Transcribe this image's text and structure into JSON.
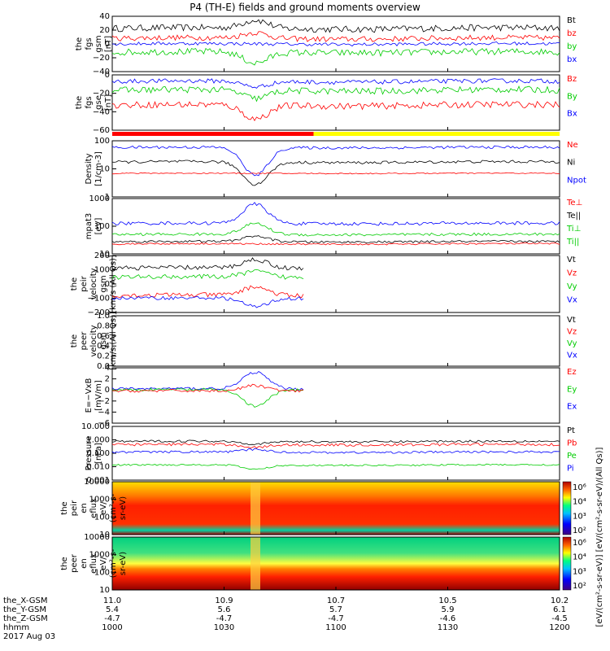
{
  "title": "P4 (TH-E) fields and ground moments overview",
  "chart_data": {
    "type": "line",
    "x_ticks": [
      "1000",
      "1030",
      "1100",
      "1130",
      "1200"
    ],
    "orbit_rows": [
      {
        "label": "the_X-GSM",
        "values": [
          "11.0",
          "10.9",
          "10.7",
          "10.5",
          "10.2"
        ]
      },
      {
        "label": "the_Y-GSM",
        "values": [
          "5.4",
          "5.6",
          "5.7",
          "5.9",
          "6.1"
        ]
      },
      {
        "label": "the_Z-GSM",
        "values": [
          "-4.7",
          "-4.7",
          "-4.7",
          "-4.6",
          "-4.5"
        ]
      },
      {
        "label": "hhmm",
        "values": [
          "1000",
          "1030",
          "1100",
          "1130",
          "1200"
        ]
      }
    ],
    "date": "2017 Aug 03",
    "panels": [
      {
        "ylabel": [
          "the",
          "fgs",
          "gsm",
          "[nT]"
        ],
        "yticks": [
          "40",
          "20",
          "0",
          "−20",
          "−40"
        ],
        "ylim": [
          -40,
          40
        ],
        "legend": [
          {
            "t": "Bt",
            "c": "#000000"
          },
          {
            "t": "bz",
            "c": "#ff0000"
          },
          {
            "t": "by",
            "c": "#00cc00"
          },
          {
            "t": "bx",
            "c": "#0000ff"
          }
        ]
      },
      {
        "ylabel": [
          "the",
          "fgs",
          "gse",
          "[nT]"
        ],
        "yticks": [
          "0",
          "−20",
          "−40",
          "−60"
        ],
        "ylim": [
          -70,
          10
        ],
        "legend": [
          {
            "t": "Bz",
            "c": "#ff0000"
          },
          {
            "t": "By",
            "c": "#00cc00"
          },
          {
            "t": "Bx",
            "c": "#0000ff"
          }
        ]
      },
      {
        "ylabel": [
          "Density",
          "[1/cm-3]"
        ],
        "yticks": [
          "100",
          "10",
          "1"
        ],
        "legend": [
          {
            "t": "Ne",
            "c": "#ff0000"
          },
          {
            "t": "Ni",
            "c": "#000000"
          },
          {
            "t": "Npot",
            "c": "#0000ff"
          }
        ]
      },
      {
        "ylabel": [
          "mpat3",
          "[eV]"
        ],
        "yticks": [
          "1000",
          "100",
          "10"
        ],
        "legend": [
          {
            "t": "Te⊥",
            "c": "#ff0000"
          },
          {
            "t": "Te||",
            "c": "#000000"
          },
          {
            "t": "Ti⊥",
            "c": "#00cc00"
          },
          {
            "t": "Ti||",
            "c": "#00cc00"
          }
        ]
      },
      {
        "ylabel": [
          "the",
          "peir",
          "velocity",
          "gsm",
          "[km/s (All Qs)]"
        ],
        "yticks": [
          "200",
          "100",
          "0",
          "−100",
          "−200"
        ],
        "ylim": [
          -200,
          200
        ],
        "legend": [
          {
            "t": "Vt",
            "c": "#000000"
          },
          {
            "t": "Vz",
            "c": "#ff0000"
          },
          {
            "t": "Vy",
            "c": "#00cc00"
          },
          {
            "t": "Vx",
            "c": "#0000ff"
          }
        ]
      },
      {
        "ylabel": [
          "the",
          "peer",
          "velocity",
          "gsm",
          "[km/s (All Qs)]"
        ],
        "yticks": [
          "1.0",
          "0.8",
          "0.6",
          "0.4",
          "0.2",
          "0.0"
        ],
        "ylim": [
          0,
          1
        ],
        "legend": [
          {
            "t": "Vt",
            "c": "#000000"
          },
          {
            "t": "Vz",
            "c": "#ff0000"
          },
          {
            "t": "Vy",
            "c": "#00cc00"
          },
          {
            "t": "Vx",
            "c": "#0000ff"
          }
        ]
      },
      {
        "ylabel": [
          "E=−VxB",
          "[mV/m]"
        ],
        "yticks": [
          "4",
          "2",
          "0",
          "−2",
          "−4",
          "−6"
        ],
        "ylim": [
          -6,
          4
        ],
        "legend": [
          {
            "t": "Ez",
            "c": "#ff0000"
          },
          {
            "t": "Ey",
            "c": "#00cc00"
          },
          {
            "t": "Ex",
            "c": "#0000ff"
          }
        ]
      },
      {
        "ylabel": [
          "Pressure",
          "[nPa]"
        ],
        "yticks": [
          "10.000",
          "1.000",
          "0.100",
          "0.010",
          "0.001"
        ],
        "legend": [
          {
            "t": "Pt",
            "c": "#000000"
          },
          {
            "t": "Pb",
            "c": "#ff0000"
          },
          {
            "t": "Pe",
            "c": "#00cc00"
          },
          {
            "t": "Pi",
            "c": "#0000ff"
          }
        ]
      },
      {
        "ylabel": [
          "the",
          "peir",
          "en",
          "eflux",
          "eV/",
          "(cm²-s-",
          "sr-eV)"
        ],
        "yticks": [
          "10000",
          "1000",
          "100",
          "10"
        ]
      },
      {
        "ylabel": [
          "the",
          "peer",
          "en",
          "eflux",
          "eV/",
          "(cm²-s-",
          "sr-eV)"
        ],
        "yticks": [
          "10000",
          "1000",
          "100",
          "10"
        ]
      }
    ],
    "colorbar": {
      "ticks": [
        "10⁶",
        "10⁴",
        "10³",
        "10²"
      ],
      "label": "[eV/(cm²-s-sr-eV)] [eV/(cm²-s-sr-eV)/(All Qs)]"
    },
    "colors": {
      "black": "#000000",
      "red": "#ff0000",
      "green": "#00cc00",
      "blue": "#0000ff"
    }
  }
}
